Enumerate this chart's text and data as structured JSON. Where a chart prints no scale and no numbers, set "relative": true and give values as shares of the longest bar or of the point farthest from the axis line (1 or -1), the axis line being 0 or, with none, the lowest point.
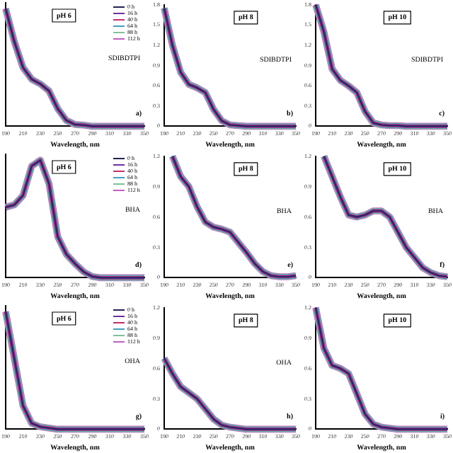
{
  "chart_data": [
    {
      "type": "line",
      "title": "pH 6",
      "xlabel": "Wavelength, nm",
      "annotations": [
        "SDIBDTPI",
        "a)"
      ],
      "relative": true,
      "legend": "top right",
      "x": [
        190,
        200,
        210,
        220,
        230,
        240,
        250,
        260,
        270,
        280,
        290,
        300,
        310,
        320,
        330,
        340,
        350
      ],
      "xlim": [
        190,
        350
      ],
      "xticks": [
        190,
        210,
        230,
        250,
        270,
        290,
        310,
        330,
        350
      ],
      "series": [
        {
          "name": "0 h",
          "color": "#222255",
          "values": [
            1,
            0.72,
            0.5,
            0.4,
            0.36,
            0.3,
            0.15,
            0.05,
            0.015,
            0.01,
            0,
            0,
            0,
            0,
            0,
            0,
            0
          ]
        },
        {
          "name": "16 h",
          "color": "#7030a0",
          "values": [
            1,
            0.72,
            0.5,
            0.4,
            0.36,
            0.3,
            0.15,
            0.05,
            0.015,
            0.01,
            0,
            0,
            0,
            0,
            0,
            0,
            0
          ]
        },
        {
          "name": "40 h",
          "color": "#c0306a",
          "values": [
            1,
            0.72,
            0.5,
            0.4,
            0.36,
            0.3,
            0.15,
            0.05,
            0.015,
            0.01,
            0,
            0,
            0,
            0,
            0,
            0,
            0
          ]
        },
        {
          "name": "64 h",
          "color": "#40a0c0",
          "values": [
            1,
            0.72,
            0.5,
            0.4,
            0.36,
            0.3,
            0.15,
            0.05,
            0.015,
            0.01,
            0,
            0,
            0,
            0,
            0,
            0,
            0
          ]
        },
        {
          "name": "88 h",
          "color": "#80c0a0",
          "values": [
            1,
            0.72,
            0.5,
            0.4,
            0.36,
            0.3,
            0.15,
            0.05,
            0.015,
            0.01,
            0,
            0,
            0,
            0,
            0,
            0,
            0
          ]
        },
        {
          "name": "112 h",
          "color": "#c060c0",
          "values": [
            1,
            0.72,
            0.5,
            0.4,
            0.36,
            0.3,
            0.15,
            0.05,
            0.015,
            0.01,
            0,
            0,
            0,
            0,
            0,
            0,
            0
          ]
        }
      ]
    },
    {
      "type": "line",
      "title": "pH 8",
      "xlabel": "Wavelength, nm",
      "annotations": [
        "SDIBDTPI",
        "b)"
      ],
      "x": [
        190,
        200,
        210,
        220,
        230,
        240,
        250,
        260,
        270,
        280,
        290,
        300,
        310,
        320,
        330,
        340,
        350
      ],
      "xlim": [
        190,
        350
      ],
      "xticks": [
        190,
        210,
        230,
        250,
        270,
        290,
        310,
        330,
        350
      ],
      "ylim": [
        0,
        1.8
      ],
      "yticks": [
        0,
        0.3,
        0.6,
        0.9,
        1.2,
        1.5,
        1.8
      ],
      "series": [
        {
          "color": "#222255",
          "values": [
            1.75,
            1.2,
            0.8,
            0.62,
            0.57,
            0.5,
            0.25,
            0.08,
            0.02,
            0.01,
            0,
            0,
            0,
            0,
            0,
            0,
            0
          ]
        },
        {
          "color": "#7030a0",
          "values": [
            1.75,
            1.2,
            0.8,
            0.62,
            0.57,
            0.5,
            0.25,
            0.08,
            0.02,
            0.01,
            0,
            0,
            0,
            0,
            0,
            0,
            0
          ]
        },
        {
          "color": "#c0306a",
          "values": [
            1.75,
            1.2,
            0.8,
            0.62,
            0.57,
            0.5,
            0.25,
            0.08,
            0.02,
            0.01,
            0,
            0,
            0,
            0,
            0,
            0,
            0
          ]
        },
        {
          "color": "#40a0c0",
          "values": [
            1.75,
            1.2,
            0.8,
            0.62,
            0.57,
            0.5,
            0.25,
            0.08,
            0.02,
            0.01,
            0,
            0,
            0,
            0,
            0,
            0,
            0
          ]
        },
        {
          "color": "#80c0a0",
          "values": [
            1.75,
            1.2,
            0.8,
            0.62,
            0.57,
            0.5,
            0.25,
            0.08,
            0.02,
            0.01,
            0,
            0,
            0,
            0,
            0,
            0,
            0
          ]
        },
        {
          "color": "#c060c0",
          "values": [
            1.75,
            1.2,
            0.8,
            0.62,
            0.57,
            0.5,
            0.25,
            0.08,
            0.02,
            0.01,
            0,
            0,
            0,
            0,
            0,
            0,
            0
          ]
        }
      ]
    },
    {
      "type": "line",
      "title": "pH 10",
      "xlabel": "Wavelength, nm",
      "annotations": [
        "SDIBDTPI",
        "c)"
      ],
      "x": [
        190,
        200,
        210,
        220,
        230,
        240,
        250,
        260,
        270,
        280,
        290,
        300,
        310,
        320,
        330,
        340,
        350
      ],
      "xlim": [
        190,
        350
      ],
      "xticks": [
        190,
        210,
        230,
        250,
        270,
        290,
        310,
        330,
        350
      ],
      "ylim": [
        0,
        1.8
      ],
      "yticks": [
        0,
        0.3,
        0.6,
        0.9,
        1.2,
        1.5,
        1.8
      ],
      "series": [
        {
          "color": "#222255",
          "values": [
            1.8,
            1.4,
            0.85,
            0.68,
            0.6,
            0.5,
            0.22,
            0.05,
            0.02,
            0.01,
            0.01,
            0,
            0,
            0,
            0,
            0,
            0
          ]
        },
        {
          "color": "#7030a0",
          "values": [
            1.8,
            1.4,
            0.85,
            0.68,
            0.6,
            0.5,
            0.22,
            0.05,
            0.02,
            0.01,
            0.01,
            0,
            0,
            0,
            0,
            0,
            0
          ]
        },
        {
          "color": "#c0306a",
          "values": [
            1.8,
            1.4,
            0.85,
            0.68,
            0.6,
            0.5,
            0.22,
            0.05,
            0.02,
            0.01,
            0.01,
            0,
            0,
            0,
            0,
            0,
            0
          ]
        },
        {
          "color": "#40a0c0",
          "values": [
            1.8,
            1.4,
            0.85,
            0.68,
            0.6,
            0.5,
            0.22,
            0.05,
            0.02,
            0.01,
            0.01,
            0,
            0,
            0,
            0,
            0,
            0
          ]
        },
        {
          "color": "#80c0a0",
          "values": [
            1.8,
            1.4,
            0.85,
            0.68,
            0.6,
            0.5,
            0.22,
            0.05,
            0.02,
            0.01,
            0.01,
            0,
            0,
            0,
            0,
            0,
            0
          ]
        },
        {
          "color": "#c060c0",
          "values": [
            1.8,
            1.4,
            0.85,
            0.68,
            0.6,
            0.5,
            0.22,
            0.05,
            0.02,
            0.01,
            0.01,
            0,
            0,
            0,
            0,
            0,
            0
          ]
        }
      ]
    },
    {
      "type": "line",
      "title": "pH 6",
      "xlabel": "Wavelength, nm",
      "annotations": [
        "BHA",
        "d)"
      ],
      "relative": true,
      "legend": "top right",
      "x": [
        190,
        200,
        210,
        220,
        230,
        240,
        250,
        260,
        270,
        280,
        290,
        300,
        310,
        320,
        330,
        340,
        350
      ],
      "xlim": [
        190,
        350
      ],
      "xticks": [
        190,
        210,
        230,
        250,
        270,
        290,
        310,
        330,
        350
      ],
      "series": [
        {
          "name": "0 h",
          "color": "#222255",
          "values": [
            0.6,
            0.62,
            0.7,
            0.95,
            1,
            0.8,
            0.35,
            0.2,
            0.12,
            0.05,
            0.01,
            0,
            0,
            0,
            0,
            0,
            0
          ]
        },
        {
          "name": "16 h",
          "color": "#7030a0",
          "values": [
            0.6,
            0.62,
            0.7,
            0.95,
            1,
            0.8,
            0.35,
            0.2,
            0.12,
            0.05,
            0.01,
            0,
            0,
            0,
            0,
            0,
            0
          ]
        },
        {
          "name": "40 h",
          "color": "#c0306a",
          "values": [
            0.6,
            0.62,
            0.7,
            0.95,
            1,
            0.8,
            0.35,
            0.2,
            0.12,
            0.05,
            0.01,
            0,
            0,
            0,
            0,
            0,
            0
          ]
        },
        {
          "name": "64 h",
          "color": "#40a0c0",
          "values": [
            0.6,
            0.62,
            0.7,
            0.95,
            1,
            0.8,
            0.35,
            0.2,
            0.12,
            0.05,
            0.01,
            0,
            0,
            0,
            0,
            0,
            0
          ]
        },
        {
          "name": "88 h",
          "color": "#80c0a0",
          "values": [
            0.6,
            0.62,
            0.7,
            0.95,
            1,
            0.8,
            0.35,
            0.2,
            0.12,
            0.05,
            0.01,
            0,
            0,
            0,
            0,
            0,
            0
          ]
        },
        {
          "name": "112 h",
          "color": "#c060c0",
          "values": [
            0.6,
            0.62,
            0.7,
            0.95,
            1,
            0.8,
            0.35,
            0.2,
            0.12,
            0.05,
            0.01,
            0,
            0,
            0,
            0,
            0,
            0
          ]
        }
      ]
    },
    {
      "type": "line",
      "title": "pH 8",
      "xlabel": "Wavelength, nm",
      "annotations": [
        "BHA",
        "e)"
      ],
      "x": [
        200,
        210,
        220,
        230,
        240,
        250,
        260,
        270,
        280,
        290,
        300,
        310,
        320,
        330,
        340,
        350
      ],
      "xlim": [
        190,
        350
      ],
      "xticks": [
        190,
        210,
        230,
        250,
        270,
        290,
        310,
        330,
        350
      ],
      "ylim": [
        0,
        1.2
      ],
      "yticks": [
        0,
        0.3,
        0.6,
        0.9,
        1.2
      ],
      "series": [
        {
          "color": "#222255",
          "values": [
            1.2,
            1.0,
            0.9,
            0.7,
            0.55,
            0.5,
            0.48,
            0.45,
            0.35,
            0.25,
            0.14,
            0.06,
            0.02,
            0.01,
            0.01,
            0.02
          ]
        },
        {
          "color": "#7030a0",
          "values": [
            1.2,
            1.0,
            0.9,
            0.7,
            0.55,
            0.5,
            0.48,
            0.45,
            0.35,
            0.25,
            0.14,
            0.06,
            0.02,
            0.01,
            0.01,
            0.02
          ]
        },
        {
          "color": "#c0306a",
          "values": [
            1.2,
            1.0,
            0.9,
            0.7,
            0.55,
            0.5,
            0.48,
            0.45,
            0.35,
            0.25,
            0.14,
            0.06,
            0.02,
            0.01,
            0.01,
            0.02
          ]
        },
        {
          "color": "#40a0c0",
          "values": [
            1.2,
            1.0,
            0.9,
            0.7,
            0.55,
            0.5,
            0.48,
            0.45,
            0.35,
            0.25,
            0.14,
            0.06,
            0.02,
            0.01,
            0.01,
            0.02
          ]
        },
        {
          "color": "#80c0a0",
          "values": [
            1.2,
            1.0,
            0.9,
            0.7,
            0.55,
            0.5,
            0.48,
            0.45,
            0.35,
            0.25,
            0.14,
            0.06,
            0.02,
            0.01,
            0.01,
            0.02
          ]
        },
        {
          "color": "#c060c0",
          "values": [
            1.2,
            1.0,
            0.9,
            0.7,
            0.55,
            0.5,
            0.48,
            0.45,
            0.35,
            0.25,
            0.14,
            0.06,
            0.02,
            0.01,
            0.01,
            0.02
          ]
        }
      ]
    },
    {
      "type": "line",
      "title": "pH 10",
      "xlabel": "Wavelength, nm",
      "annotations": [
        "BHA",
        "f)"
      ],
      "x": [
        200,
        210,
        220,
        230,
        240,
        250,
        260,
        270,
        280,
        290,
        300,
        310,
        320,
        330,
        340,
        350
      ],
      "xlim": [
        190,
        350
      ],
      "xticks": [
        190,
        210,
        230,
        250,
        270,
        290,
        310,
        330,
        350
      ],
      "ylim": [
        0,
        1.2
      ],
      "yticks": [
        0,
        0.3,
        0.6,
        0.9,
        1.2
      ],
      "series": [
        {
          "color": "#222255",
          "values": [
            1.2,
            1.0,
            0.8,
            0.62,
            0.6,
            0.62,
            0.66,
            0.66,
            0.6,
            0.45,
            0.3,
            0.2,
            0.1,
            0.05,
            0.02,
            0.01
          ]
        },
        {
          "color": "#7030a0",
          "values": [
            1.2,
            1.0,
            0.8,
            0.62,
            0.6,
            0.62,
            0.66,
            0.66,
            0.6,
            0.45,
            0.3,
            0.2,
            0.1,
            0.05,
            0.02,
            0.01
          ]
        },
        {
          "color": "#c0306a",
          "values": [
            1.2,
            1.0,
            0.8,
            0.62,
            0.6,
            0.62,
            0.66,
            0.66,
            0.6,
            0.45,
            0.3,
            0.2,
            0.1,
            0.05,
            0.02,
            0.01
          ]
        },
        {
          "color": "#40a0c0",
          "values": [
            1.2,
            1.0,
            0.8,
            0.62,
            0.6,
            0.62,
            0.66,
            0.66,
            0.6,
            0.45,
            0.3,
            0.2,
            0.1,
            0.05,
            0.02,
            0.01
          ]
        },
        {
          "color": "#80c0a0",
          "values": [
            1.2,
            1.0,
            0.8,
            0.62,
            0.6,
            0.62,
            0.66,
            0.66,
            0.6,
            0.45,
            0.3,
            0.2,
            0.1,
            0.05,
            0.02,
            0.01
          ]
        },
        {
          "color": "#c060c0",
          "values": [
            1.2,
            1.0,
            0.8,
            0.62,
            0.6,
            0.62,
            0.66,
            0.66,
            0.6,
            0.45,
            0.3,
            0.2,
            0.1,
            0.05,
            0.02,
            0.01
          ]
        }
      ]
    },
    {
      "type": "line",
      "title": "pH 6",
      "xlabel": "Wavelength, nm",
      "annotations": [
        "OHA",
        "g)"
      ],
      "relative": true,
      "legend": "top right",
      "x": [
        190,
        200,
        210,
        220,
        230,
        240,
        250,
        260,
        270,
        280,
        290,
        300,
        310,
        320,
        330,
        340,
        350
      ],
      "xlim": [
        190,
        350
      ],
      "xticks": [
        190,
        210,
        230,
        250,
        270,
        290,
        310,
        330,
        350
      ],
      "series": [
        {
          "name": "0 h",
          "color": "#222255",
          "values": [
            1,
            0.6,
            0.2,
            0.05,
            0.02,
            0.01,
            0,
            0,
            0,
            0,
            0,
            0,
            0,
            0,
            0,
            0,
            0
          ]
        },
        {
          "name": "16 h",
          "color": "#7030a0",
          "values": [
            1,
            0.6,
            0.2,
            0.05,
            0.02,
            0.01,
            0,
            0,
            0,
            0,
            0,
            0,
            0,
            0,
            0,
            0,
            0
          ]
        },
        {
          "name": "40 h",
          "color": "#c0306a",
          "values": [
            1,
            0.6,
            0.2,
            0.05,
            0.02,
            0.01,
            0,
            0,
            0,
            0,
            0,
            0,
            0,
            0,
            0,
            0,
            0
          ]
        },
        {
          "name": "64 h",
          "color": "#40a0c0",
          "values": [
            1,
            0.6,
            0.2,
            0.05,
            0.02,
            0.01,
            0,
            0,
            0,
            0,
            0,
            0,
            0,
            0,
            0,
            0,
            0
          ]
        },
        {
          "name": "88 h",
          "color": "#80c0a0",
          "values": [
            1,
            0.6,
            0.2,
            0.05,
            0.02,
            0.01,
            0,
            0,
            0,
            0,
            0,
            0,
            0,
            0,
            0,
            0,
            0
          ]
        },
        {
          "name": "112 h",
          "color": "#c060c0",
          "values": [
            1,
            0.6,
            0.2,
            0.05,
            0.02,
            0.01,
            0,
            0,
            0,
            0,
            0,
            0,
            0,
            0,
            0,
            0,
            0
          ]
        }
      ]
    },
    {
      "type": "line",
      "title": "pH 8",
      "xlabel": "Wavelength, nm",
      "annotations": [
        "OHA",
        "h)"
      ],
      "x": [
        190,
        200,
        210,
        220,
        230,
        240,
        250,
        260,
        270,
        280,
        290,
        300,
        310,
        320,
        330,
        340,
        350
      ],
      "xlim": [
        190,
        350
      ],
      "xticks": [
        190,
        210,
        230,
        250,
        270,
        290,
        310,
        330,
        350
      ],
      "ylim": [
        0,
        1.2
      ],
      "yticks": [
        0,
        0.3,
        0.6,
        0.9,
        1.2
      ],
      "series": [
        {
          "color": "#222255",
          "values": [
            0.7,
            0.55,
            0.42,
            0.36,
            0.3,
            0.2,
            0.1,
            0.04,
            0.02,
            0.01,
            0,
            0,
            0,
            0,
            0,
            0,
            0
          ]
        },
        {
          "color": "#7030a0",
          "values": [
            0.7,
            0.55,
            0.42,
            0.36,
            0.3,
            0.2,
            0.1,
            0.04,
            0.02,
            0.01,
            0,
            0,
            0,
            0,
            0,
            0,
            0
          ]
        },
        {
          "color": "#c0306a",
          "values": [
            0.7,
            0.55,
            0.42,
            0.36,
            0.3,
            0.2,
            0.1,
            0.04,
            0.02,
            0.01,
            0,
            0,
            0,
            0,
            0,
            0,
            0
          ]
        },
        {
          "color": "#40a0c0",
          "values": [
            0.7,
            0.55,
            0.42,
            0.36,
            0.3,
            0.2,
            0.1,
            0.04,
            0.02,
            0.01,
            0,
            0,
            0,
            0,
            0,
            0,
            0
          ]
        },
        {
          "color": "#80c0a0",
          "values": [
            0.7,
            0.55,
            0.42,
            0.36,
            0.3,
            0.2,
            0.1,
            0.04,
            0.02,
            0.01,
            0,
            0,
            0,
            0,
            0,
            0,
            0
          ]
        },
        {
          "color": "#c060c0",
          "values": [
            0.7,
            0.55,
            0.42,
            0.36,
            0.3,
            0.2,
            0.1,
            0.04,
            0.02,
            0.01,
            0,
            0,
            0,
            0,
            0,
            0,
            0
          ]
        }
      ]
    },
    {
      "type": "line",
      "title": "pH 10",
      "xlabel": "Wavelength, nm",
      "annotations": [
        "i)"
      ],
      "x": [
        190,
        200,
        210,
        220,
        230,
        240,
        250,
        260,
        270,
        280,
        290,
        300,
        310,
        320,
        330,
        340,
        350
      ],
      "xlim": [
        190,
        350
      ],
      "xticks": [
        190,
        210,
        230,
        250,
        270,
        290,
        310,
        330,
        350
      ],
      "ylim": [
        0,
        1.2
      ],
      "yticks": [
        0,
        0.3,
        0.6,
        0.9,
        1.2
      ],
      "series": [
        {
          "color": "#222255",
          "values": [
            1.2,
            0.8,
            0.63,
            0.6,
            0.55,
            0.35,
            0.15,
            0.05,
            0.02,
            0.01,
            0,
            0,
            0,
            0,
            0,
            0,
            0
          ]
        },
        {
          "color": "#7030a0",
          "values": [
            1.2,
            0.8,
            0.63,
            0.6,
            0.55,
            0.35,
            0.15,
            0.05,
            0.02,
            0.01,
            0,
            0,
            0,
            0,
            0,
            0,
            0
          ]
        },
        {
          "color": "#c0306a",
          "values": [
            1.2,
            0.8,
            0.63,
            0.6,
            0.55,
            0.35,
            0.15,
            0.05,
            0.02,
            0.01,
            0,
            0,
            0,
            0,
            0,
            0,
            0
          ]
        },
        {
          "color": "#40a0c0",
          "values": [
            1.2,
            0.8,
            0.63,
            0.6,
            0.55,
            0.35,
            0.15,
            0.05,
            0.02,
            0.01,
            0,
            0,
            0,
            0,
            0,
            0,
            0
          ]
        },
        {
          "color": "#80c0a0",
          "values": [
            1.2,
            0.8,
            0.63,
            0.6,
            0.55,
            0.35,
            0.15,
            0.05,
            0.02,
            0.01,
            0,
            0,
            0,
            0,
            0,
            0,
            0
          ]
        },
        {
          "color": "#c060c0",
          "values": [
            1.2,
            0.8,
            0.63,
            0.6,
            0.55,
            0.35,
            0.15,
            0.05,
            0.02,
            0.01,
            0,
            0,
            0,
            0,
            0,
            0,
            0
          ]
        }
      ]
    }
  ]
}
